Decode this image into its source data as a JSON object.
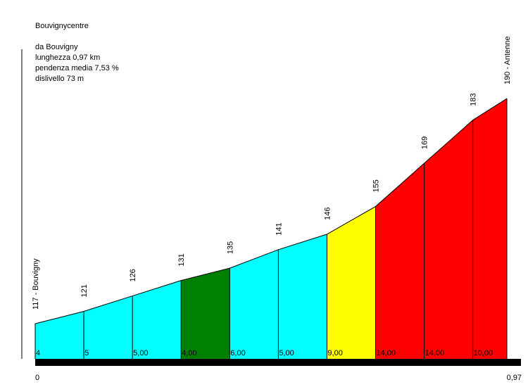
{
  "header": {
    "title": "Bouvignycentre",
    "start": "da Bouvigny",
    "length": "lunghezza 0,97 km",
    "avg_gradient": "pendenza media 7,53 %",
    "elevation_gain": "dislivello 73 m"
  },
  "chart_data": {
    "type": "area",
    "title": "Bouvignycentre",
    "x_start_label": "0",
    "x_end_label": "0,97",
    "xlim": [
      0,
      0.97
    ],
    "ylim": [
      100,
      200
    ],
    "points": [
      {
        "x": 0.0,
        "y": 117,
        "label": "117 - Bouvigny"
      },
      {
        "x": 0.1,
        "y": 121,
        "label": "121"
      },
      {
        "x": 0.2,
        "y": 126,
        "label": "126"
      },
      {
        "x": 0.3,
        "y": 131,
        "label": "131"
      },
      {
        "x": 0.4,
        "y": 135,
        "label": "135"
      },
      {
        "x": 0.5,
        "y": 141,
        "label": "141"
      },
      {
        "x": 0.6,
        "y": 146,
        "label": "146"
      },
      {
        "x": 0.7,
        "y": 155,
        "label": "155"
      },
      {
        "x": 0.8,
        "y": 169,
        "label": "169"
      },
      {
        "x": 0.9,
        "y": 183,
        "label": "183"
      },
      {
        "x": 0.97,
        "y": 190,
        "label": "190 - Antenne"
      }
    ],
    "segments": [
      {
        "gradient": "4",
        "color": "#00ffff"
      },
      {
        "gradient": "5",
        "color": "#00ffff"
      },
      {
        "gradient": "5,00",
        "color": "#00ffff"
      },
      {
        "gradient": "4,00",
        "color": "#008000"
      },
      {
        "gradient": "6,00",
        "color": "#00ffff"
      },
      {
        "gradient": "5,00",
        "color": "#00ffff"
      },
      {
        "gradient": "9,00",
        "color": "#ffff00"
      },
      {
        "gradient": "14,00",
        "color": "#ff0000"
      },
      {
        "gradient": "14,00",
        "color": "#ff0000"
      },
      {
        "gradient": "10,00",
        "color": "#ff0000"
      }
    ]
  }
}
